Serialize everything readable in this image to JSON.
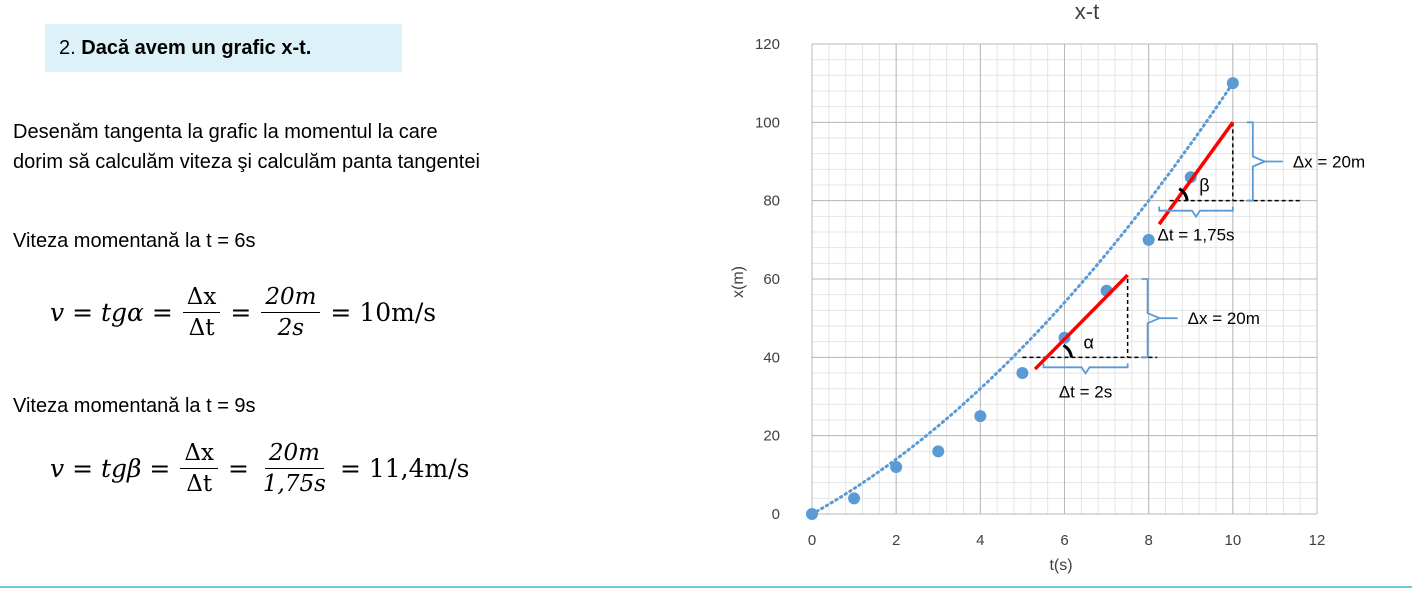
{
  "heading": {
    "number": "2.",
    "text": "Dacă avem un grafic x-t."
  },
  "intro": {
    "line1": "Desenăm tangenta la grafic la momentul la care",
    "line2": "dorim să calculăm viteza şi calculăm panta tangentei"
  },
  "case1": {
    "label": "Viteza momentană la t = 6s",
    "lhs": "v = tgα =",
    "num1": "Δx",
    "den1": "Δt",
    "eq": "=",
    "num2": "20m",
    "den2": "2s",
    "result": "= 10m/s"
  },
  "case2": {
    "label": "Viteza momentană la t = 9s",
    "lhs": "v = tgβ =",
    "num1": "Δx",
    "den1": "Δt",
    "eq": "=",
    "num2": "20m",
    "den2": "1,75s",
    "result": "= 11,4m/s"
  },
  "chart_data": {
    "type": "scatter",
    "title": "x-t",
    "xlabel": "t(s)",
    "ylabel": "x(m)",
    "xlim": [
      0,
      12
    ],
    "ylim": [
      0,
      120
    ],
    "xticks": [
      0,
      2,
      4,
      6,
      8,
      10,
      12
    ],
    "yticks": [
      0,
      20,
      40,
      60,
      80,
      100,
      120
    ],
    "grid": true,
    "colors": {
      "points": "#5b9bd5",
      "trend": "#5b9bd5",
      "tangent": "#ff0000",
      "brace": "#5b9bd5",
      "guide": "#000000"
    },
    "points": [
      {
        "t": 0,
        "x": 0
      },
      {
        "t": 1,
        "x": 4
      },
      {
        "t": 2,
        "x": 12
      },
      {
        "t": 3,
        "x": 16
      },
      {
        "t": 4,
        "x": 25
      },
      {
        "t": 5,
        "x": 36
      },
      {
        "t": 6,
        "x": 45
      },
      {
        "t": 7,
        "x": 57
      },
      {
        "t": 8,
        "x": 70
      },
      {
        "t": 9,
        "x": 86
      },
      {
        "t": 10,
        "x": 110
      }
    ],
    "trendline": {
      "style": "dotted",
      "coefficients": [
        0.5,
        6.0,
        0
      ]
    },
    "tangents": [
      {
        "at_t": 6,
        "angle_label": "α",
        "line": [
          [
            5.3,
            37
          ],
          [
            7.5,
            61
          ]
        ],
        "base_y": 40,
        "base_from_t": 5.0,
        "base_to_t": 8.2,
        "dx_label": "Δt = 2s",
        "dx_from": 5.5,
        "dx_to": 7.5,
        "dy_label": "Δx = 20m",
        "dy_from": 40,
        "dy_to": 60
      },
      {
        "at_t": 9,
        "angle_label": "β",
        "line": [
          [
            8.25,
            74
          ],
          [
            10,
            100
          ]
        ],
        "base_y": 80,
        "base_from_t": 8.5,
        "base_to_t": 11.6,
        "dx_label": "Δt = 1,75s",
        "dx_from": 8.25,
        "dx_to": 10,
        "dy_label": "Δx = 20m",
        "dy_from": 80,
        "dy_to": 100
      }
    ]
  }
}
